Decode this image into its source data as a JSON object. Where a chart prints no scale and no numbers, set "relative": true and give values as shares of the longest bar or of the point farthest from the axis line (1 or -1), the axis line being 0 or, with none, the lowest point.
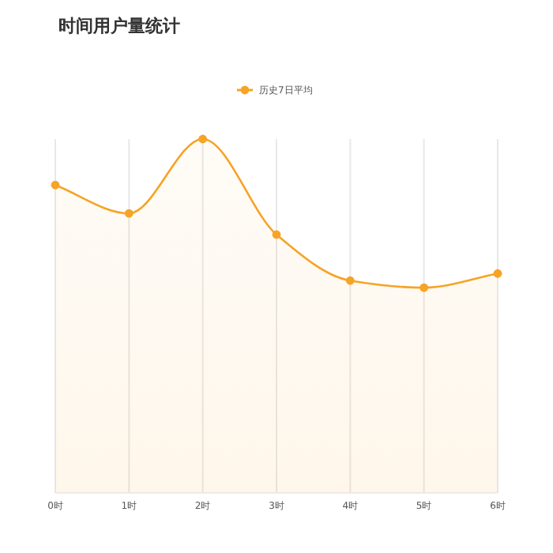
{
  "chart_data": {
    "type": "area",
    "title": "时间用户量统计",
    "categories": [
      "0时",
      "1时",
      "2时",
      "3时",
      "4时",
      "5时",
      "6时"
    ],
    "relative": true,
    "series": [
      {
        "name": "历史7日平均",
        "color": "#f7a325",
        "values": [
          0.87,
          0.79,
          1,
          0.73,
          0.6,
          0.58,
          0.62
        ]
      }
    ],
    "grid": "x",
    "legend": "top",
    "marker": "circle",
    "line_style": "solid"
  }
}
